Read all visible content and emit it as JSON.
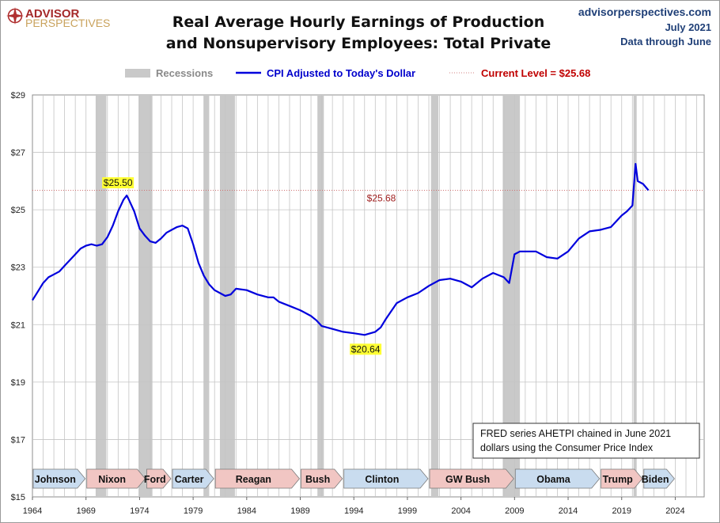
{
  "header": {
    "logo_line1": "ADVISOR",
    "logo_line2": "PERSPECTIVES",
    "title_line1": "Real Average Hourly Earnings of Production",
    "title_line2": "and Nonsupervisory Employees: Total Private",
    "site": "advisorperspectives.com",
    "date": "July 2021",
    "data_note": "Data through June"
  },
  "legend": {
    "recessions": "Recessions",
    "series": "CPI Adjusted to Today's Dollar",
    "current": "Current Level = $25.68"
  },
  "colors": {
    "series": "#0000dd",
    "recession": "#c9c9c9",
    "current_line": "#c00000",
    "dem_box": "#c9dcef",
    "rep_box": "#f1c6c3",
    "highlight": "#ffff33"
  },
  "note": {
    "line1": "FRED series AHETPI chained in June 2021",
    "line2": "dollars using the Consumer Price Index"
  },
  "chart_data": {
    "type": "line",
    "title": "Real Average Hourly Earnings of Production and Nonsupervisory Employees: Total Private",
    "xlim": [
      1964,
      2026.7
    ],
    "ylim": [
      15,
      29
    ],
    "x_ticks": [
      1964,
      1969,
      1974,
      1979,
      1984,
      1989,
      1994,
      1999,
      2004,
      2009,
      2014,
      2019,
      2024
    ],
    "y_ticks": [
      15,
      17,
      19,
      21,
      23,
      25,
      27,
      29
    ],
    "y_tick_labels": [
      "$15",
      "$17",
      "$19",
      "$21",
      "$23",
      "$25",
      "$27",
      "$29"
    ],
    "current_level": 25.68,
    "current_label": "$25.68",
    "recessions": [
      [
        1969.9,
        1970.9
      ],
      [
        1973.9,
        1975.2
      ],
      [
        1980.0,
        1980.5
      ],
      [
        1981.5,
        1982.9
      ],
      [
        1990.6,
        1991.2
      ],
      [
        2001.2,
        2001.9
      ],
      [
        2007.9,
        2009.5
      ],
      [
        2020.1,
        2020.4
      ]
    ],
    "presidents": [
      {
        "name": "Johnson",
        "start": 1964.0,
        "end": 1969.0,
        "party": "D"
      },
      {
        "name": "Nixon",
        "start": 1969.0,
        "end": 1974.6,
        "party": "R"
      },
      {
        "name": "Ford",
        "start": 1974.6,
        "end": 1977.0,
        "party": "R"
      },
      {
        "name": "Carter",
        "start": 1977.0,
        "end": 1981.0,
        "party": "D"
      },
      {
        "name": "Reagan",
        "start": 1981.0,
        "end": 1989.0,
        "party": "R"
      },
      {
        "name": "Bush",
        "start": 1989.0,
        "end": 1993.0,
        "party": "R"
      },
      {
        "name": "Clinton",
        "start": 1993.0,
        "end": 2001.0,
        "party": "D"
      },
      {
        "name": "GW Bush",
        "start": 2001.0,
        "end": 2009.0,
        "party": "R"
      },
      {
        "name": "Obama",
        "start": 2009.0,
        "end": 2017.0,
        "party": "D"
      },
      {
        "name": "Trump",
        "start": 2017.0,
        "end": 2021.0,
        "party": "R"
      },
      {
        "name": "Biden",
        "start": 2021.0,
        "end": 2024.0,
        "party": "D"
      }
    ],
    "annotations": [
      {
        "x": 1972.8,
        "y": 25.5,
        "label": "$25.50"
      },
      {
        "x": 1995.1,
        "y": 20.64,
        "label": "$20.64"
      }
    ],
    "series": [
      {
        "name": "CPI Adjusted to Today's Dollar",
        "x": [
          1964.0,
          1964.5,
          1965.0,
          1965.5,
          1966.0,
          1966.5,
          1967.0,
          1967.5,
          1968.0,
          1968.5,
          1969.0,
          1969.5,
          1970.0,
          1970.5,
          1971.0,
          1971.5,
          1972.0,
          1972.5,
          1972.8,
          1973.0,
          1973.5,
          1974.0,
          1974.5,
          1975.0,
          1975.5,
          1976.0,
          1976.5,
          1977.0,
          1977.5,
          1978.0,
          1978.5,
          1979.0,
          1979.5,
          1980.0,
          1980.5,
          1981.0,
          1981.5,
          1982.0,
          1982.5,
          1983.0,
          1984.0,
          1985.0,
          1986.0,
          1986.5,
          1987.0,
          1988.0,
          1989.0,
          1990.0,
          1990.5,
          1991.0,
          1992.0,
          1993.0,
          1994.0,
          1995.0,
          1996.0,
          1996.5,
          1997.0,
          1998.0,
          1999.0,
          2000.0,
          2001.0,
          2002.0,
          2003.0,
          2004.0,
          2005.0,
          2006.0,
          2007.0,
          2008.0,
          2008.5,
          2009.0,
          2009.5,
          2010.0,
          2011.0,
          2012.0,
          2013.0,
          2014.0,
          2015.0,
          2016.0,
          2017.0,
          2018.0,
          2019.0,
          2019.5,
          2020.0,
          2020.3,
          2020.5,
          2021.0,
          2021.5
        ],
        "y": [
          21.85,
          22.15,
          22.45,
          22.65,
          22.75,
          22.85,
          23.05,
          23.25,
          23.45,
          23.65,
          23.75,
          23.8,
          23.75,
          23.8,
          24.05,
          24.45,
          24.95,
          25.35,
          25.5,
          25.35,
          24.95,
          24.35,
          24.1,
          23.9,
          23.85,
          24.0,
          24.2,
          24.3,
          24.4,
          24.45,
          24.35,
          23.8,
          23.15,
          22.7,
          22.4,
          22.2,
          22.1,
          22.0,
          22.05,
          22.25,
          22.2,
          22.05,
          21.95,
          21.95,
          21.8,
          21.65,
          21.5,
          21.3,
          21.15,
          20.95,
          20.85,
          20.75,
          20.7,
          20.64,
          20.75,
          20.9,
          21.2,
          21.75,
          21.95,
          22.1,
          22.35,
          22.55,
          22.6,
          22.5,
          22.3,
          22.6,
          22.8,
          22.65,
          22.45,
          23.45,
          23.55,
          23.55,
          23.55,
          23.35,
          23.3,
          23.55,
          24.0,
          24.25,
          24.3,
          24.4,
          24.8,
          24.95,
          25.15,
          26.6,
          26.0,
          25.9,
          25.68
        ]
      }
    ]
  }
}
